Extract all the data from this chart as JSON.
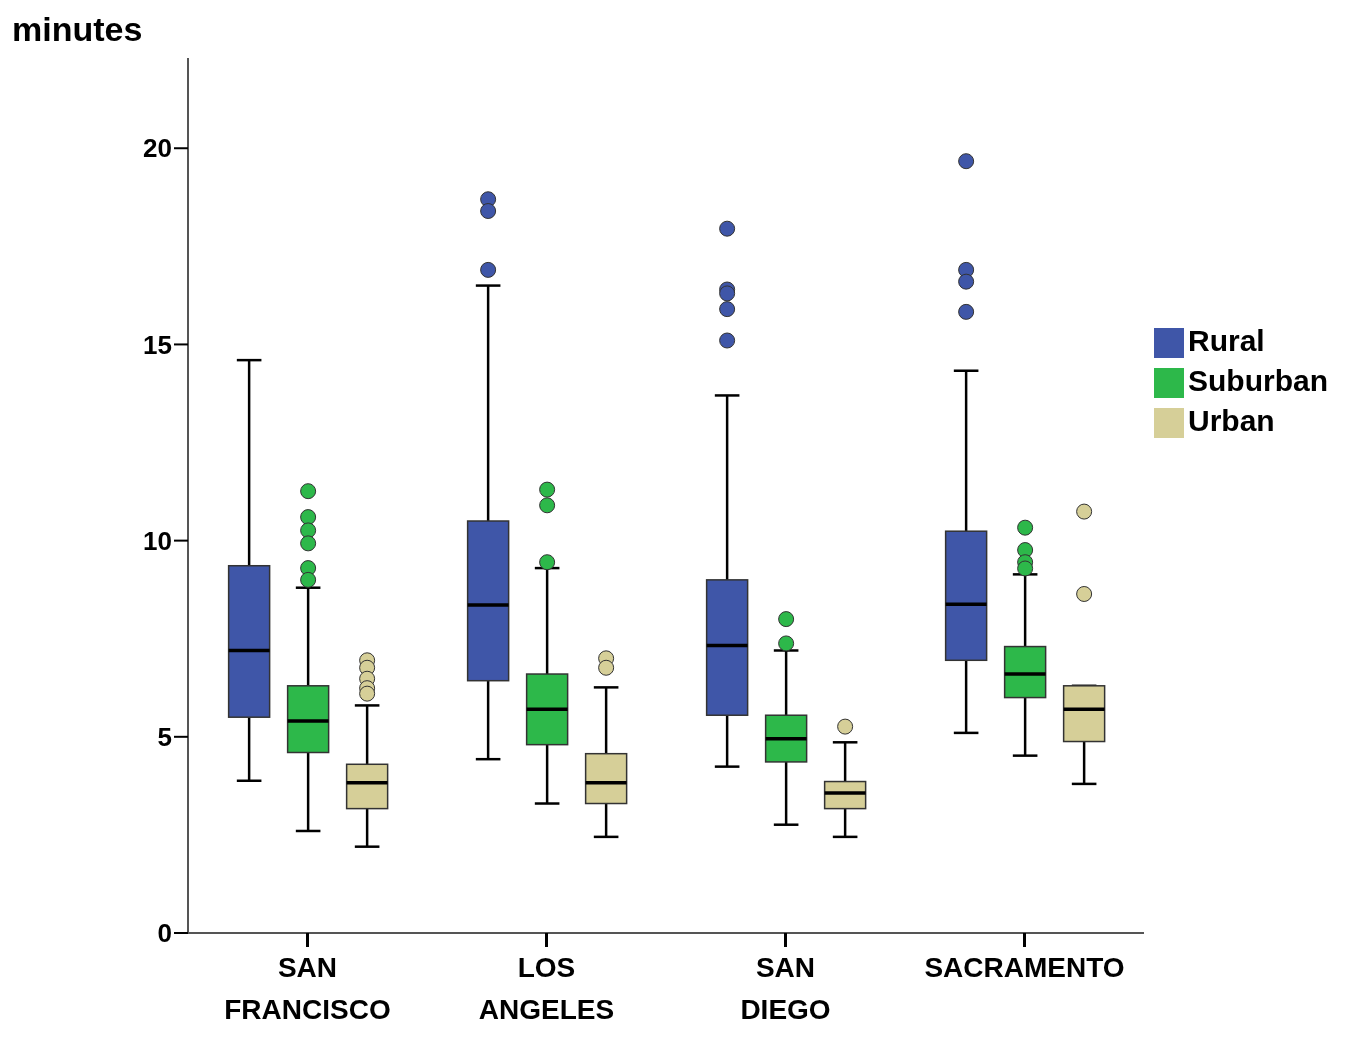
{
  "chart_data": {
    "type": "box",
    "ylabel": "minutes",
    "categories": [
      "SAN FRANCISCO",
      "LOS ANGELES",
      "SAN DIEGO",
      "SACRAMENTO"
    ],
    "ylim": [
      0,
      22.3
    ],
    "yticks": [
      0,
      5,
      10,
      15,
      20
    ],
    "grid": false,
    "legend": "right",
    "series": [
      {
        "name": "Rural",
        "color": "#3f56a8",
        "boxes": [
          {
            "low": 3.88,
            "q1": 5.5,
            "median": 7.2,
            "q3": 9.36,
            "high": 14.6
          },
          {
            "low": 4.43,
            "q1": 6.43,
            "median": 8.36,
            "q3": 10.5,
            "high": 16.5,
            "outliers": [
              18.7,
              18.4,
              16.9
            ]
          },
          {
            "low": 4.24,
            "q1": 5.55,
            "median": 7.33,
            "q3": 9.0,
            "high": 13.7,
            "outliers": [
              17.95,
              16.4,
              16.3,
              15.9,
              15.1
            ]
          },
          {
            "low": 5.1,
            "q1": 6.95,
            "median": 8.38,
            "q3": 10.24,
            "high": 14.33,
            "outliers": [
              19.67,
              16.9,
              16.6,
              15.83
            ]
          }
        ]
      },
      {
        "name": "Suburban",
        "color": "#2db84a",
        "boxes": [
          {
            "low": 2.6,
            "q1": 4.6,
            "median": 5.4,
            "q3": 6.3,
            "high": 8.8,
            "outliers": [
              11.26,
              10.6,
              10.26,
              9.93,
              9.3,
              9.0
            ]
          },
          {
            "low": 3.3,
            "q1": 4.8,
            "median": 5.7,
            "q3": 6.6,
            "high": 9.3,
            "outliers": [
              11.3,
              10.9,
              9.45
            ]
          },
          {
            "low": 2.76,
            "q1": 4.36,
            "median": 4.95,
            "q3": 5.55,
            "high": 7.2,
            "outliers": [
              8.0,
              7.38
            ]
          },
          {
            "low": 4.52,
            "q1": 6.0,
            "median": 6.6,
            "q3": 7.3,
            "high": 9.14,
            "outliers": [
              10.33,
              9.76,
              9.45,
              9.29
            ]
          }
        ]
      },
      {
        "name": "Urban",
        "color": "#d6cf98",
        "boxes": [
          {
            "low": 2.2,
            "q1": 3.17,
            "median": 3.83,
            "q3": 4.3,
            "high": 5.8,
            "outliers": [
              6.95,
              6.76,
              6.48,
              6.24,
              6.1
            ]
          },
          {
            "low": 2.45,
            "q1": 3.3,
            "median": 3.83,
            "q3": 4.57,
            "high": 6.26,
            "outliers": [
              7.0,
              6.76
            ]
          },
          {
            "low": 2.45,
            "q1": 3.17,
            "median": 3.57,
            "q3": 3.86,
            "high": 4.86,
            "outliers": [
              5.26
            ]
          },
          {
            "low": 3.8,
            "q1": 4.88,
            "median": 5.7,
            "q3": 6.3,
            "high": 6.3,
            "outliers": [
              10.74,
              8.64
            ]
          }
        ]
      }
    ]
  }
}
